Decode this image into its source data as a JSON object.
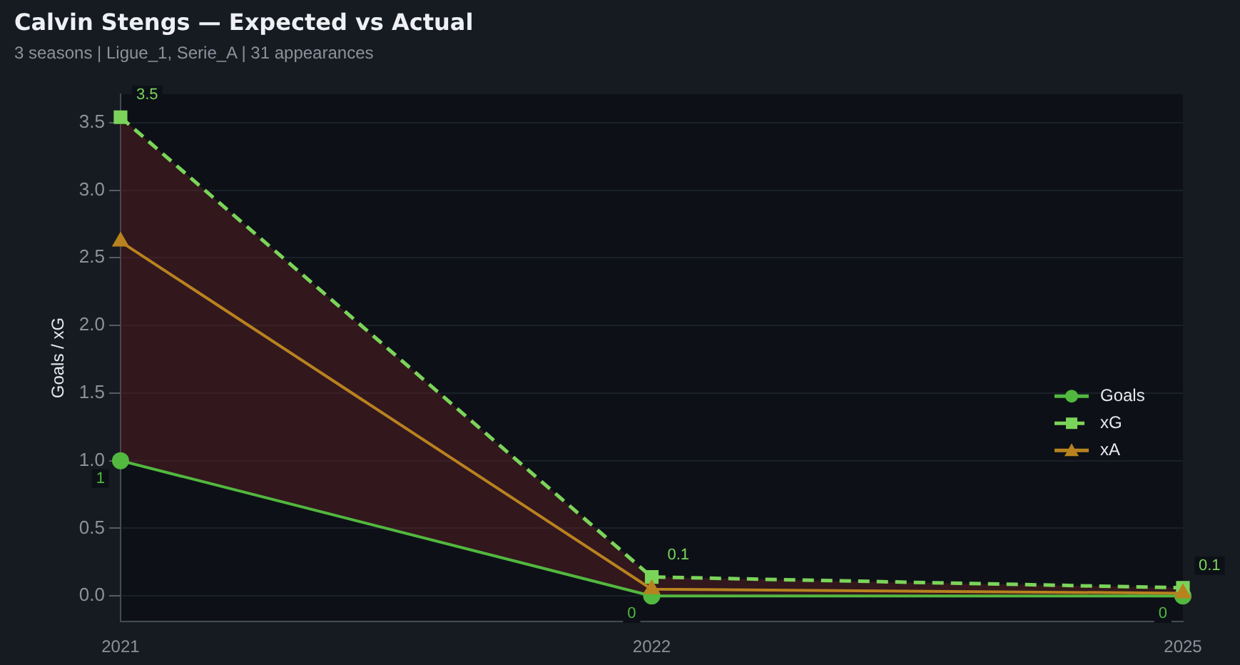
{
  "chart_data": {
    "type": "line",
    "title": "Calvin Stengs — Expected vs Actual",
    "subtitle": "3 seasons | Ligue_1, Serie_A | 31 appearances",
    "ylabel": "Goals / xG",
    "categories": [
      "2021",
      "2022",
      "2025"
    ],
    "series": [
      {
        "name": "Goals",
        "color": "#52b83f",
        "values": [
          1,
          0,
          0
        ],
        "value_labels": [
          "1",
          "0",
          "0"
        ],
        "marker": "circle",
        "line_style": "solid"
      },
      {
        "name": "xG",
        "color": "#7bd45a",
        "values": [
          3.54,
          0.14,
          0.06
        ],
        "value_labels": [
          "3.5",
          "0.1",
          "0.1"
        ],
        "marker": "square",
        "line_style": "dashed",
        "lower": [
          1,
          0,
          0
        ],
        "upper": [
          3.54,
          0.14,
          0.06
        ]
      },
      {
        "name": "xA",
        "color": "#b8821f",
        "values": [
          2.62,
          0.05,
          0.02
        ],
        "marker": "triangle",
        "line_style": "solid"
      }
    ],
    "ylim": [
      -0.19,
      3.71
    ],
    "yticks": [
      {
        "value": 0,
        "label": "0.0"
      },
      {
        "value": 0.5,
        "label": "0.5"
      },
      {
        "value": 1,
        "label": "1.0"
      },
      {
        "value": 1.5,
        "label": "1.5"
      },
      {
        "value": 2,
        "label": "2.0"
      },
      {
        "value": 2.5,
        "label": "2.5"
      },
      {
        "value": 3,
        "label": "3.0"
      },
      {
        "value": 3.5,
        "label": "3.5"
      }
    ],
    "grid": "y",
    "legend": "bottom right"
  }
}
